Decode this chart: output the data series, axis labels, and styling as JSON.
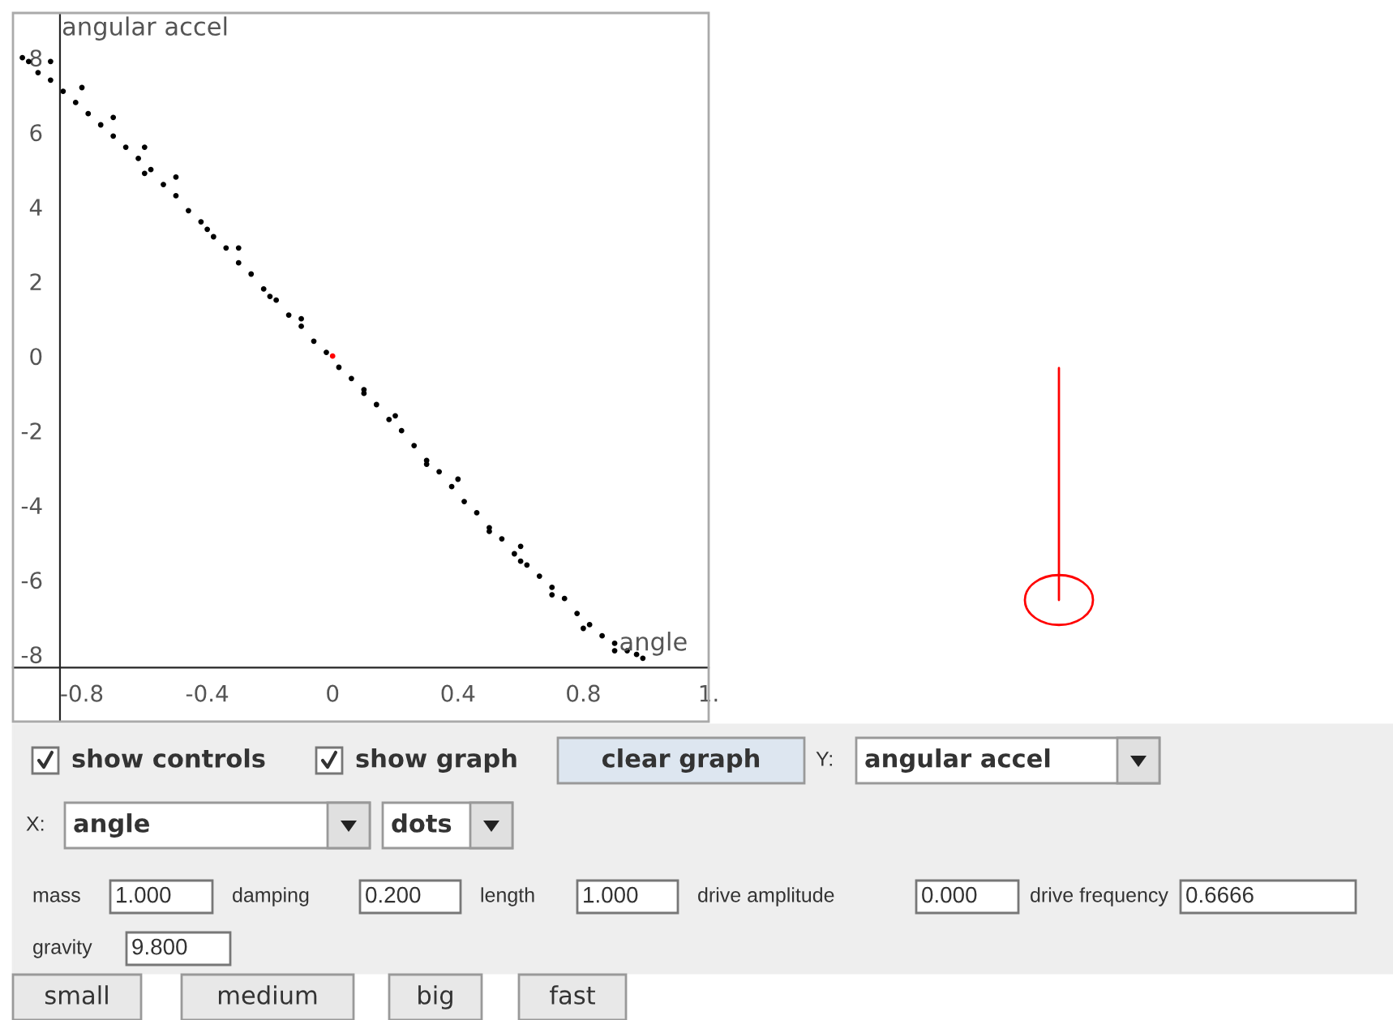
{
  "chart_data": [
    {
      "type": "scatter",
      "xlabel": "angle",
      "ylabel": "angular accel",
      "xlim": [
        -1.02,
        1.2
      ],
      "ylim": [
        -9.8,
        9.2
      ],
      "xticks": [
        -0.8,
        -0.4,
        0,
        0.4,
        0.8,
        {
          "value": 1.2,
          "label": "1."
        }
      ],
      "yticks": [
        -8,
        -6,
        -4,
        -2,
        0,
        2,
        4,
        6,
        8
      ],
      "grid": false,
      "marker": "circle",
      "ref_lines": [
        {
          "axis": "x",
          "value": -0.87,
          "color": "#262626"
        }
      ],
      "series": [
        {
          "color": "#000000",
          "x": [
            -0.99,
            -0.97,
            -0.94,
            -0.9,
            -0.86,
            -0.82,
            -0.78,
            -0.74,
            -0.7,
            -0.66,
            -0.62,
            -0.58,
            -0.54,
            -0.5,
            -0.46,
            -0.42,
            -0.38,
            -0.34,
            -0.3,
            -0.26,
            -0.22,
            -0.18,
            -0.14,
            -0.1,
            -0.06,
            -0.02,
            0.02,
            0.06,
            0.1,
            0.14,
            0.18,
            0.22,
            0.26,
            0.3,
            0.34,
            0.38,
            0.42,
            0.46,
            0.5,
            0.54,
            0.58,
            0.62,
            0.66,
            0.7,
            0.74,
            0.78,
            0.82,
            0.86,
            0.9,
            0.94,
            0.97,
            0.99,
            -0.9,
            -0.8,
            -0.7,
            -0.6,
            -0.5,
            -0.3,
            -0.1,
            0.1,
            0.3,
            0.5,
            0.6,
            0.7,
            0.8,
            0.9,
            -0.6,
            -0.4,
            -0.2,
            0.2,
            0.4,
            0.6
          ],
          "values": [
            8.0,
            7.9,
            7.6,
            7.4,
            7.1,
            6.8,
            6.5,
            6.2,
            5.9,
            5.6,
            5.3,
            5.0,
            4.6,
            4.3,
            3.9,
            3.6,
            3.2,
            2.9,
            2.5,
            2.2,
            1.8,
            1.5,
            1.1,
            0.8,
            0.4,
            0.1,
            -0.3,
            -0.6,
            -1.0,
            -1.3,
            -1.7,
            -2.0,
            -2.4,
            -2.8,
            -3.1,
            -3.5,
            -3.9,
            -4.2,
            -4.6,
            -4.9,
            -5.3,
            -5.6,
            -5.9,
            -6.2,
            -6.5,
            -6.9,
            -7.2,
            -7.5,
            -7.7,
            -7.9,
            -8.0,
            -8.1,
            7.9,
            7.2,
            6.4,
            5.6,
            4.8,
            2.9,
            1.0,
            -0.9,
            -2.9,
            -4.7,
            -5.5,
            -6.4,
            -7.3,
            -7.9,
            4.9,
            3.4,
            1.6,
            -1.6,
            -3.3,
            -5.1
          ]
        },
        {
          "color": "#ff0000",
          "x": [
            0
          ],
          "values": [
            0
          ]
        }
      ]
    },
    {
      "type": "other",
      "annotations": [
        "show controls",
        "show graph",
        "clear graph",
        "Y:",
        "angular accel",
        "X:",
        "angle",
        "dots",
        "mass",
        "1.000",
        "damping",
        "0.200",
        "length",
        "1.000",
        "drive amplitude",
        "0.000",
        "drive frequency",
        "0.6666",
        "gravity",
        "9.800",
        "small",
        "medium",
        "big",
        "fast"
      ]
    }
  ]
}
